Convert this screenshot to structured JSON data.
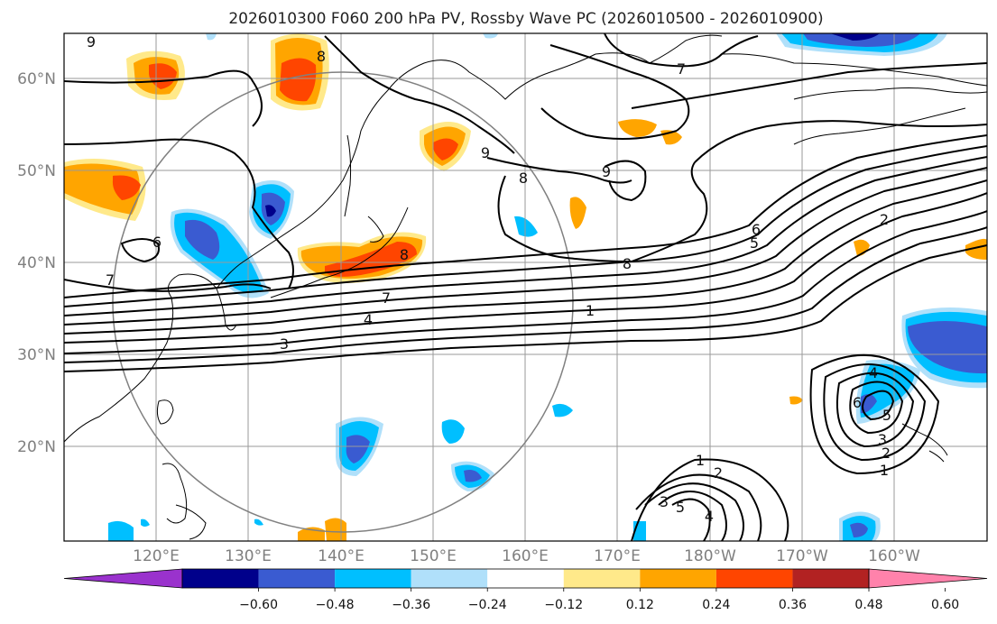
{
  "title": "2026010300 F060 200 hPa PV, Rossby Wave PC (2026010500 - 2026010900)",
  "map": {
    "lat_ticks": [
      "60°N",
      "50°N",
      "40°N",
      "30°N",
      "20°N"
    ],
    "lon_ticks": [
      "120°E",
      "130°E",
      "140°E",
      "150°E",
      "160°E",
      "170°E",
      "180°W",
      "170°W",
      "160°W"
    ]
  },
  "contour_labels": {
    "l1": "9",
    "l2": "8",
    "l3": "7",
    "l4": "9",
    "l5": "8",
    "l6": "9",
    "l7": "6",
    "l8": "7",
    "l9": "8",
    "l10": "7",
    "l11": "4",
    "l12": "3",
    "l13": "8",
    "l14": "6",
    "l15": "5",
    "l16": "2",
    "l17": "1",
    "l18": "4",
    "l19": "6",
    "l20": "5",
    "l21": "3",
    "l22": "2",
    "l23": "1",
    "l24": "1",
    "l25": "2",
    "l26": "3",
    "l27": "5",
    "l28": "4"
  },
  "colorbar": {
    "ticks": [
      "−0.60",
      "−0.48",
      "−0.36",
      "−0.24",
      "−0.12",
      "0.12",
      "0.24",
      "0.36",
      "0.48",
      "0.60"
    ],
    "colors": [
      "#9a32cd",
      "#00008b",
      "#3a5bd1",
      "#00bfff",
      "#b0e0fa",
      "#ffffff",
      "#ffe98a",
      "#ffa500",
      "#ff4500",
      "#b22222",
      "#ff82ab"
    ]
  }
}
